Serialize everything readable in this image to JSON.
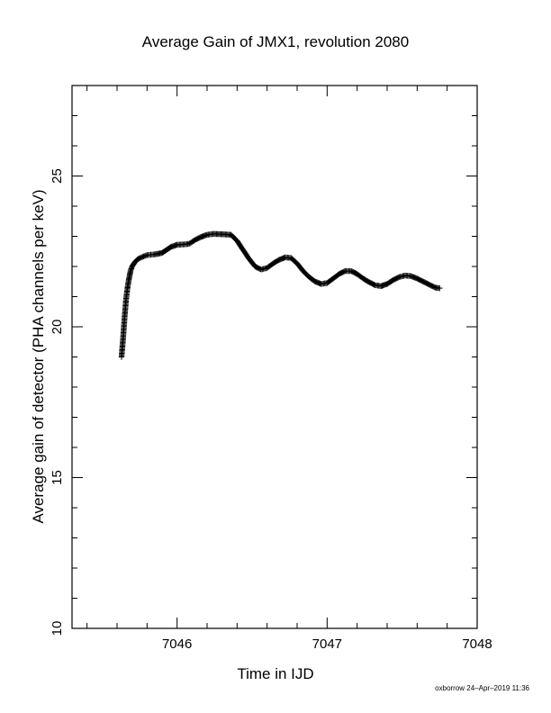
{
  "chart_data": {
    "type": "scatter",
    "title": "Average Gain of JMX1, revolution 2080",
    "xlabel": "Time in IJD",
    "ylabel": "Average gain of detector (PHA channels per keV)",
    "xlim": [
      7045.3,
      7048.0
    ],
    "ylim": [
      10,
      28
    ],
    "x_ticks": [
      "7046",
      "7047",
      "7048"
    ],
    "y_ticks": [
      "10",
      "15",
      "20",
      "25"
    ],
    "marker": "plus",
    "grid": false,
    "series": [
      {
        "x": [
          7045.63,
          7045.64,
          7045.65,
          7045.66,
          7045.67,
          7045.68,
          7045.69,
          7045.7,
          7045.72,
          7045.74,
          7045.77,
          7045.8,
          7045.85,
          7045.9,
          7045.93,
          7045.96,
          7046.0,
          7046.04,
          7046.08,
          7046.12,
          7046.16,
          7046.2,
          7046.24,
          7046.3,
          7046.36,
          7046.4,
          7046.44,
          7046.48,
          7046.52,
          7046.56,
          7046.6,
          7046.64,
          7046.68,
          7046.72,
          7046.76,
          7046.8,
          7046.84,
          7046.88,
          7046.92,
          7046.96,
          7047.0,
          7047.04,
          7047.08,
          7047.12,
          7047.16,
          7047.2,
          7047.24,
          7047.28,
          7047.32,
          7047.36,
          7047.4,
          7047.44,
          7047.48,
          7047.52,
          7047.56,
          7047.6,
          7047.64,
          7047.68,
          7047.72,
          7047.75
        ],
        "y": [
          19.0,
          19.6,
          20.3,
          20.9,
          21.3,
          21.6,
          21.85,
          22.0,
          22.15,
          22.25,
          22.32,
          22.38,
          22.4,
          22.45,
          22.55,
          22.65,
          22.72,
          22.73,
          22.75,
          22.88,
          22.98,
          23.05,
          23.08,
          23.07,
          23.05,
          22.85,
          22.55,
          22.25,
          22.0,
          21.9,
          21.95,
          22.1,
          22.22,
          22.3,
          22.28,
          22.1,
          21.85,
          21.65,
          21.5,
          21.42,
          21.45,
          21.6,
          21.75,
          21.85,
          21.85,
          21.75,
          21.6,
          21.48,
          21.38,
          21.35,
          21.42,
          21.55,
          21.65,
          21.7,
          21.68,
          21.6,
          21.5,
          21.4,
          21.3,
          21.28
        ]
      }
    ]
  },
  "footer": "oxborrow 24–Apr–2019 11:36"
}
